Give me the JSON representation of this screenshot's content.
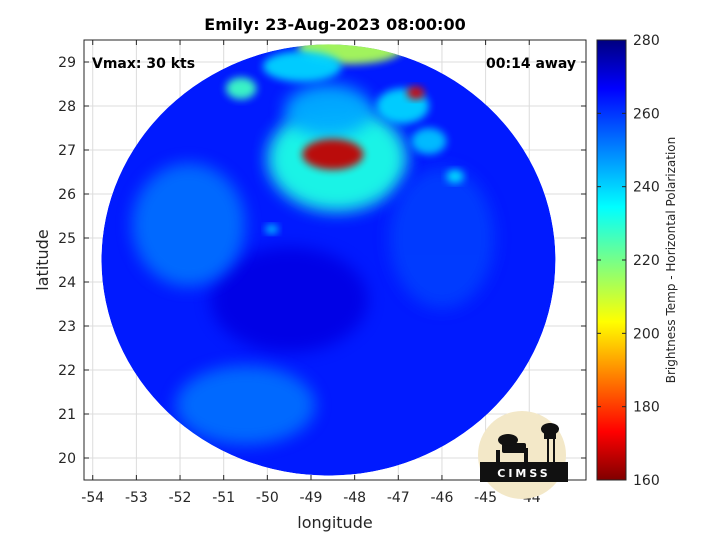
{
  "chart_data": {
    "type": "heatmap",
    "title": "Emily: 23-Aug-2023 08:00:00",
    "xlabel": "longitude",
    "ylabel": "latitude",
    "xlim": [
      -54.2,
      -42.7
    ],
    "ylim": [
      19.5,
      29.5
    ],
    "x_ticks": [
      -54,
      -53,
      -52,
      -51,
      -50,
      -49,
      -48,
      -47,
      -46,
      -45,
      -44
    ],
    "y_ticks": [
      20,
      21,
      22,
      23,
      24,
      25,
      26,
      27,
      28,
      29
    ],
    "grid": true,
    "annotations": {
      "vmax": "Vmax: 30 kts",
      "time_offset": "00:14 away"
    },
    "colorbar": {
      "label": "Brightness Temp - Horizontal Polarization",
      "min": 160,
      "max": 280,
      "ticks": [
        160,
        180,
        200,
        220,
        240,
        260,
        280
      ],
      "colormap": "jet"
    },
    "swath": {
      "shape": "ellipse",
      "center": [
        -48.6,
        24.5
      ],
      "radius_lon": 5.2,
      "radius_lat": 4.9,
      "background_value": 262
    },
    "features": [
      {
        "lon": -48.5,
        "lat": 26.9,
        "value": 168,
        "extent_lon": 0.7,
        "extent_lat": 0.35
      },
      {
        "lon": -48.4,
        "lat": 26.8,
        "value": 232,
        "extent_lon": 1.6,
        "extent_lat": 1.2
      },
      {
        "lon": -46.6,
        "lat": 28.3,
        "value": 170,
        "extent_lon": 0.2,
        "extent_lat": 0.15
      },
      {
        "lon": -46.9,
        "lat": 28.0,
        "value": 240,
        "extent_lon": 0.6,
        "extent_lat": 0.4
      },
      {
        "lon": -48.1,
        "lat": 29.3,
        "value": 215,
        "extent_lon": 1.2,
        "extent_lat": 0.35
      },
      {
        "lon": -49.2,
        "lat": 28.9,
        "value": 240,
        "extent_lon": 0.9,
        "extent_lat": 0.35
      },
      {
        "lon": -50.6,
        "lat": 28.4,
        "value": 228,
        "extent_lon": 0.35,
        "extent_lat": 0.25
      },
      {
        "lon": -48.6,
        "lat": 27.9,
        "value": 245,
        "extent_lon": 1.0,
        "extent_lat": 0.6
      },
      {
        "lon": -46.3,
        "lat": 27.2,
        "value": 242,
        "extent_lon": 0.4,
        "extent_lat": 0.3
      },
      {
        "lon": -45.7,
        "lat": 26.4,
        "value": 238,
        "extent_lon": 0.2,
        "extent_lat": 0.15
      },
      {
        "lon": -49.9,
        "lat": 25.2,
        "value": 240,
        "extent_lon": 0.15,
        "extent_lat": 0.1
      },
      {
        "lon": -49.5,
        "lat": 23.6,
        "value": 268,
        "extent_lon": 1.8,
        "extent_lat": 1.2
      },
      {
        "lon": -51.8,
        "lat": 25.3,
        "value": 252,
        "extent_lon": 1.3,
        "extent_lat": 1.4
      },
      {
        "lon": -50.5,
        "lat": 21.2,
        "value": 252,
        "extent_lon": 1.6,
        "extent_lat": 0.9
      },
      {
        "lon": -46.0,
        "lat": 25.0,
        "value": 258,
        "extent_lon": 1.2,
        "extent_lat": 1.6
      }
    ]
  },
  "logo": {
    "text": "CIMSS"
  }
}
